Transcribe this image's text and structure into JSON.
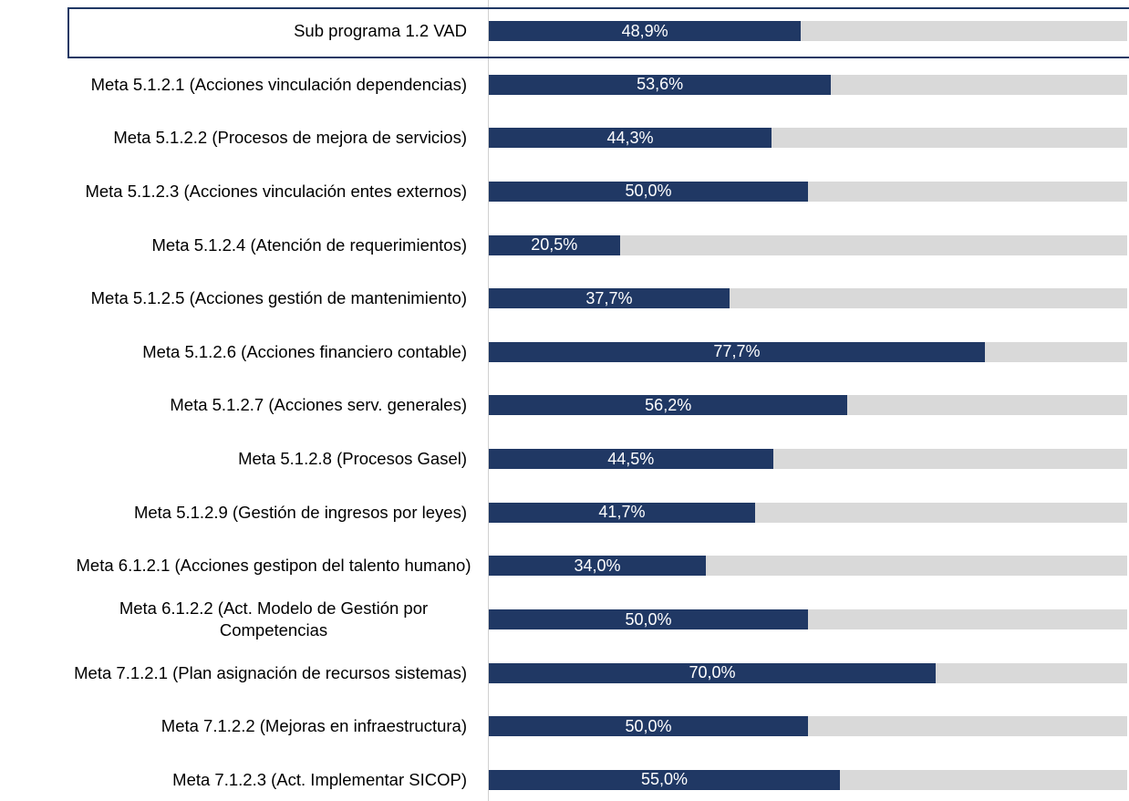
{
  "chart_data": {
    "type": "bar",
    "orientation": "horizontal",
    "categories": [
      "Sub programa 1.2 VAD",
      "Meta 5.1.2.1 (Acciones vinculación dependencias)",
      "Meta 5.1.2.2 (Procesos de mejora de servicios)",
      "Meta 5.1.2.3 (Acciones vinculación entes externos)",
      "Meta 5.1.2.4 (Atención de requerimientos)",
      "Meta 5.1.2.5 (Acciones gestión de mantenimiento)",
      "Meta 5.1.2.6 (Acciones financiero contable)",
      "Meta 5.1.2.7 (Acciones serv. generales)",
      "Meta 5.1.2.8 (Procesos Gasel)",
      "Meta 5.1.2.9 (Gestión de ingresos por leyes)",
      "Meta 6.1.2.1 (Acciones gestipon del talento humano)",
      "Meta 6.1.2.2 (Act. Modelo de Gestión por Competencias",
      "Meta 7.1.2.1 (Plan asignación de recursos sistemas)",
      "Meta 7.1.2.2 (Mejoras en infraestructura)",
      "Meta 7.1.2.3 (Act. Implementar SICOP)"
    ],
    "values": [
      48.9,
      53.6,
      44.3,
      50.0,
      20.5,
      37.7,
      77.7,
      56.2,
      44.5,
      41.7,
      34.0,
      50.0,
      70.0,
      50.0,
      55.0
    ],
    "value_labels": [
      "48,9%",
      "53,6%",
      "44,3%",
      "50,0%",
      "20,5%",
      "37,7%",
      "77,7%",
      "56,2%",
      "44,5%",
      "41,7%",
      "34,0%",
      "50,0%",
      "70,0%",
      "50,0%",
      "55,0%"
    ],
    "color": "#203864",
    "track_color": "#d9d9d9",
    "xlim": [
      0,
      100
    ]
  }
}
